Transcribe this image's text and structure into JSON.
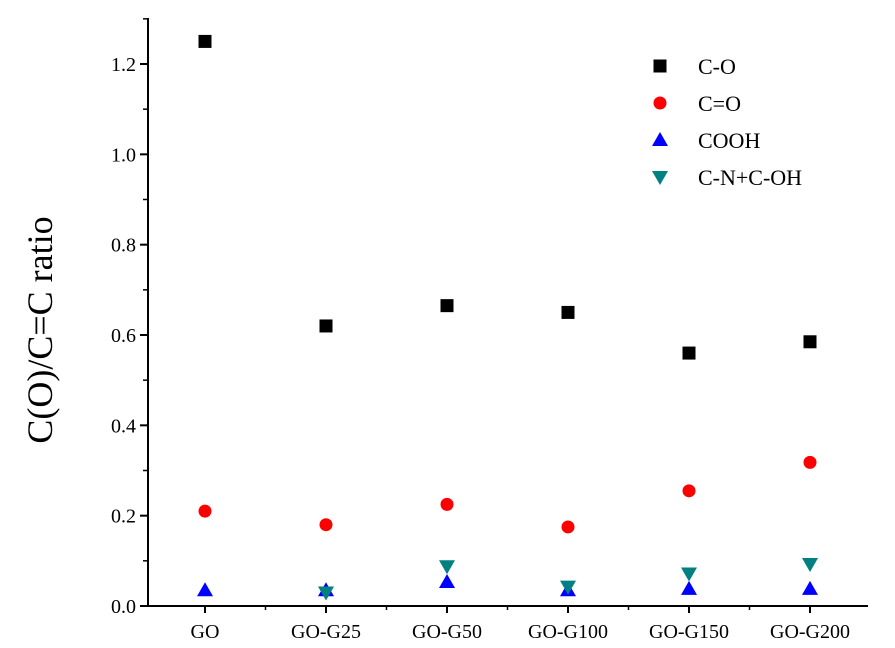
{
  "chart_data": {
    "type": "scatter",
    "title": "",
    "xlabel": "",
    "ylabel": "C(O)/C=C ratio",
    "categories": [
      "GO",
      "GO-G25",
      "GO-G50",
      "GO-G100",
      "GO-G150",
      "GO-G200"
    ],
    "ylim": [
      0,
      1.3
    ],
    "yticks": [
      "0.0",
      "0.2",
      "0.4",
      "0.6",
      "0.8",
      "1.0",
      "1.2"
    ],
    "ytick_values": [
      0,
      0.2,
      0.4,
      0.6,
      0.8,
      1.0,
      1.2
    ],
    "grid": false,
    "legend_position": "top-right",
    "series": [
      {
        "name": "C-O",
        "marker": "square",
        "color": "#000000",
        "values": [
          1.25,
          0.62,
          0.665,
          0.65,
          0.56,
          0.585
        ]
      },
      {
        "name": "C=O",
        "marker": "circle",
        "color": "#ff0000",
        "values": [
          0.21,
          0.18,
          0.225,
          0.175,
          0.255,
          0.318
        ]
      },
      {
        "name": "COOH",
        "marker": "triangle-up",
        "color": "#0000ff",
        "values": [
          0.035,
          0.035,
          0.053,
          0.035,
          0.038,
          0.038
        ]
      },
      {
        "name": "C-N+C-OH",
        "marker": "triangle-down",
        "color": "#008080",
        "values": [
          null,
          0.03,
          0.088,
          0.043,
          0.072,
          0.093
        ]
      }
    ]
  }
}
